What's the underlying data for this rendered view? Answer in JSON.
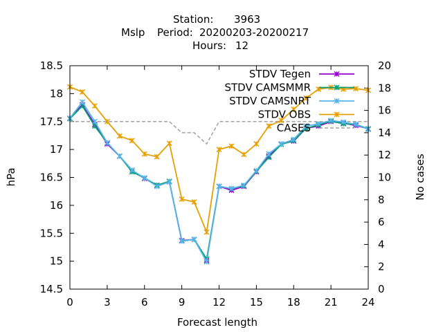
{
  "chart_data": {
    "type": "line",
    "title": {
      "line1_label": "Station:",
      "line1_value": "3963",
      "line2_param": "Mslp",
      "line2_label": "Period:",
      "line2_value": "20200203-20200217",
      "line3_label": "Hours:",
      "line3_value": "12"
    },
    "xlabel": "Forecast length",
    "ylabel": "hPa",
    "y2label": "No cases",
    "xlim": [
      0,
      24
    ],
    "ylim": [
      14.5,
      18.5
    ],
    "y2lim": [
      0,
      20
    ],
    "xticks": [
      0,
      3,
      6,
      9,
      12,
      15,
      18,
      21,
      24
    ],
    "yticks": [
      14.5,
      15,
      15.5,
      16,
      16.5,
      17,
      17.5,
      18,
      18.5
    ],
    "y2ticks": [
      0,
      2,
      4,
      6,
      8,
      10,
      12,
      14,
      16,
      18,
      20
    ],
    "grid": false,
    "legend_position": "top-right",
    "x": [
      0,
      1,
      2,
      3,
      4,
      5,
      6,
      7,
      8,
      9,
      10,
      11,
      12,
      13,
      14,
      15,
      16,
      17,
      18,
      19,
      20,
      21,
      22,
      23,
      24
    ],
    "series": [
      {
        "name": "STDV Tegen",
        "color": "#9400d3",
        "marker": "x",
        "axis": "y",
        "values": [
          17.56,
          17.8,
          17.45,
          17.1,
          16.88,
          16.63,
          16.48,
          16.36,
          16.42,
          15.37,
          15.39,
          15.01,
          16.34,
          16.27,
          16.34,
          16.6,
          16.88,
          17.1,
          17.15,
          17.38,
          17.42,
          17.5,
          17.47,
          17.43,
          17.37
        ]
      },
      {
        "name": "STDV CAMSMMR",
        "color": "#009e73",
        "marker": "x",
        "axis": "y",
        "values": [
          17.55,
          17.78,
          17.42,
          17.12,
          16.88,
          16.6,
          16.49,
          16.36,
          16.43,
          15.36,
          15.39,
          15.04,
          16.34,
          16.3,
          16.35,
          16.61,
          16.86,
          17.09,
          17.16,
          17.38,
          17.44,
          17.51,
          17.46,
          17.45,
          17.37
        ]
      },
      {
        "name": "STDV CAMSNRT",
        "color": "#56b4e9",
        "marker": "x",
        "axis": "y",
        "values": [
          17.56,
          17.85,
          17.5,
          17.12,
          16.88,
          16.63,
          16.49,
          16.34,
          16.42,
          15.36,
          15.39,
          14.99,
          16.34,
          16.3,
          16.36,
          16.62,
          16.92,
          17.1,
          17.18,
          17.42,
          17.46,
          17.52,
          17.49,
          17.45,
          17.36
        ]
      },
      {
        "name": "STDV OBS",
        "color": "#e69f00",
        "marker": "x",
        "axis": "y",
        "values": [
          18.12,
          18.03,
          17.78,
          17.5,
          17.24,
          17.16,
          16.92,
          16.87,
          17.11,
          16.11,
          16.06,
          15.52,
          17.0,
          17.06,
          16.91,
          17.1,
          17.42,
          17.52,
          17.72,
          17.92,
          18.08,
          18.11,
          18.08,
          18.09,
          18.06
        ]
      },
      {
        "name": "CASES",
        "color": "#a0a0a0",
        "marker": "none",
        "axis": "y2",
        "dashed": true,
        "values": [
          15,
          15,
          15,
          15,
          15,
          15,
          15,
          15,
          15,
          14,
          14,
          13,
          15,
          15,
          15,
          15,
          15,
          15,
          15,
          15,
          15,
          15,
          15,
          15,
          15
        ]
      }
    ]
  }
}
